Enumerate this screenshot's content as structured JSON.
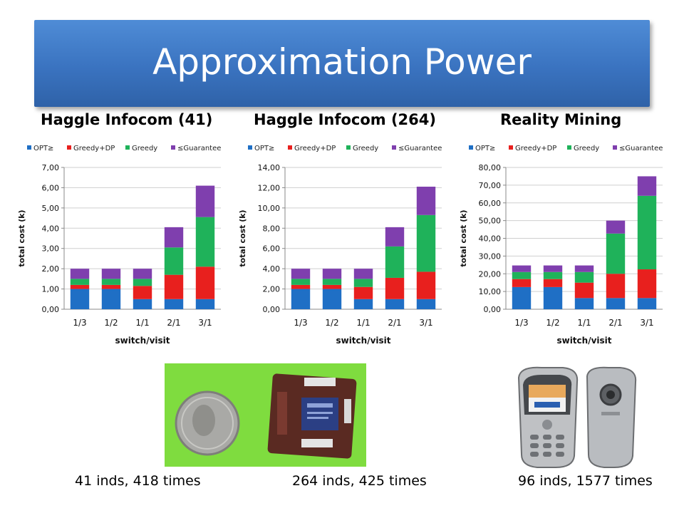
{
  "title": "Approximation Power",
  "legend": [
    {
      "label": "OPT≥",
      "color": "#1f6fc5"
    },
    {
      "label": "Greedy+DP",
      "color": "#e8201e"
    },
    {
      "label": "Greedy",
      "color": "#1fb25a"
    },
    {
      "label": "≤Guarantee",
      "color": "#7f3fae"
    }
  ],
  "chart_data": [
    {
      "type": "bar",
      "stacked": true,
      "title": "Haggle Infocom (41)",
      "caption": "41 inds, 418 times",
      "xlabel": "switch/visit",
      "ylabel": "total cost (k)",
      "categories": [
        "1/3",
        "1/2",
        "1/1",
        "2/1",
        "3/1"
      ],
      "ylim": [
        0,
        7
      ],
      "ytick_step": 1,
      "ytick_labels": [
        "0,00",
        "1,00",
        "2,00",
        "3,00",
        "4,00",
        "5,00",
        "6,00",
        "7,00"
      ],
      "series": [
        {
          "name": "OPT≥",
          "values": [
            1.0,
            1.0,
            0.5,
            0.5,
            0.5
          ]
        },
        {
          "name": "Greedy+DP",
          "values": [
            0.2,
            0.2,
            0.65,
            1.2,
            1.6
          ]
        },
        {
          "name": "Greedy",
          "values": [
            0.3,
            0.3,
            0.35,
            1.35,
            2.45
          ]
        },
        {
          "name": "≤Guarantee",
          "values": [
            0.5,
            0.5,
            0.5,
            1.0,
            1.55
          ]
        }
      ]
    },
    {
      "type": "bar",
      "stacked": true,
      "title": "Haggle Infocom (264)",
      "caption": "264 inds, 425 times",
      "xlabel": "switch/visit",
      "ylabel": "total cost (k)",
      "categories": [
        "1/3",
        "1/2",
        "1/1",
        "2/1",
        "3/1"
      ],
      "ylim": [
        0,
        14
      ],
      "ytick_step": 2,
      "ytick_labels": [
        "0,00",
        "2,00",
        "4,00",
        "6,00",
        "8,00",
        "10,00",
        "12,00",
        "14,00"
      ],
      "series": [
        {
          "name": "OPT≥",
          "values": [
            2.0,
            2.0,
            1.0,
            1.0,
            1.0
          ]
        },
        {
          "name": "Greedy+DP",
          "values": [
            0.4,
            0.4,
            1.2,
            2.1,
            2.7
          ]
        },
        {
          "name": "Greedy",
          "values": [
            0.6,
            0.6,
            0.8,
            3.1,
            5.6
          ]
        },
        {
          "name": "≤Guarantee",
          "values": [
            1.0,
            1.0,
            1.0,
            1.9,
            2.8
          ]
        }
      ]
    },
    {
      "type": "bar",
      "stacked": true,
      "title": "Reality Mining",
      "caption": "96 inds, 1577 times",
      "xlabel": "switch/visit",
      "ylabel": "total cost (k)",
      "categories": [
        "1/3",
        "1/2",
        "1/1",
        "2/1",
        "3/1"
      ],
      "ylim": [
        0,
        80
      ],
      "ytick_step": 10,
      "ytick_labels": [
        "0,00",
        "10,00",
        "20,00",
        "30,00",
        "40,00",
        "50,00",
        "60,00",
        "70,00",
        "80,00"
      ],
      "series": [
        {
          "name": "OPT≥",
          "values": [
            12.5,
            12.5,
            6.3,
            6.3,
            6.3
          ]
        },
        {
          "name": "Greedy+DP",
          "values": [
            4.5,
            4.5,
            8.7,
            13.7,
            16.2
          ]
        },
        {
          "name": "Greedy",
          "values": [
            4.0,
            4.0,
            6.0,
            22.7,
            41.5
          ]
        },
        {
          "name": "≤Guarantee",
          "values": [
            3.7,
            3.7,
            3.7,
            7.3,
            11.0
          ]
        }
      ]
    }
  ]
}
